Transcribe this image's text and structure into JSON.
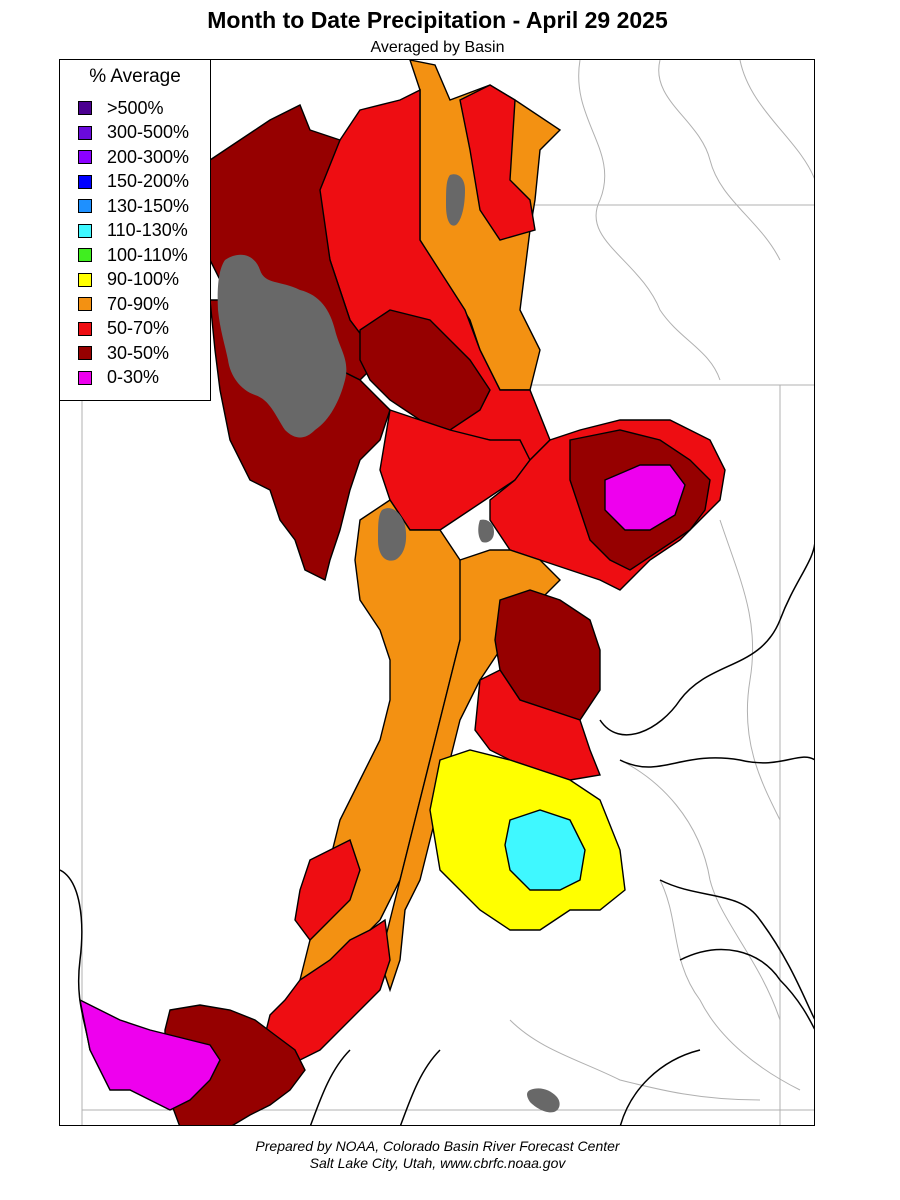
{
  "header": {
    "title": "Month to Date Precipitation - April 29 2025",
    "subtitle": "Averaged by Basin"
  },
  "legend": {
    "title": "% Average",
    "items": [
      {
        "label": ">500%",
        "color": "#4b0090"
      },
      {
        "label": "300-500%",
        "color": "#6a0adc"
      },
      {
        "label": "200-300%",
        "color": "#8b00ff"
      },
      {
        "label": "150-200%",
        "color": "#0000ff"
      },
      {
        "label": "130-150%",
        "color": "#1e90ff"
      },
      {
        "label": "110-130%",
        "color": "#3ff8ff"
      },
      {
        "label": "100-110%",
        "color": "#40ee20"
      },
      {
        "label": "90-100%",
        "color": "#ffff00"
      },
      {
        "label": "70-90%",
        "color": "#f39112"
      },
      {
        "label": "50-70%",
        "color": "#ee0d12"
      },
      {
        "label": "30-50%",
        "color": "#960000"
      },
      {
        "label": "0-30%",
        "color": "#ee00ee"
      }
    ]
  },
  "map": {
    "no_data_color": "#686868",
    "basins": [
      {
        "name": "upper-bear-green",
        "category": "70-90%"
      },
      {
        "name": "upper-green",
        "category": "50-70%"
      },
      {
        "name": "bear-river",
        "category": "30-50%"
      },
      {
        "name": "great-salt-lake-west",
        "category": "30-50%"
      },
      {
        "name": "weber-ogden",
        "category": "30-50%"
      },
      {
        "name": "provo-jordan",
        "category": "50-70%"
      },
      {
        "name": "duchesne",
        "category": "50-70%"
      },
      {
        "name": "white-river",
        "category": "50-70%"
      },
      {
        "name": "yampa-lower",
        "category": "0-30%"
      },
      {
        "name": "sevier-upper",
        "category": "70-90%"
      },
      {
        "name": "price-san-rafael",
        "category": "70-90%"
      },
      {
        "name": "dirty-devil",
        "category": "30-50%"
      },
      {
        "name": "escalante",
        "category": "90-100%"
      },
      {
        "name": "paria-upper",
        "category": "110-130%"
      },
      {
        "name": "virgin-upper",
        "category": "50-70%"
      },
      {
        "name": "virgin-lower",
        "category": "0-30%"
      },
      {
        "name": "beaver-dam",
        "category": "30-50%"
      }
    ]
  },
  "footer": {
    "line1": "Prepared by NOAA, Colorado Basin River Forecast Center",
    "line2": "Salt Lake City, Utah, www.cbrfc.noaa.gov"
  }
}
